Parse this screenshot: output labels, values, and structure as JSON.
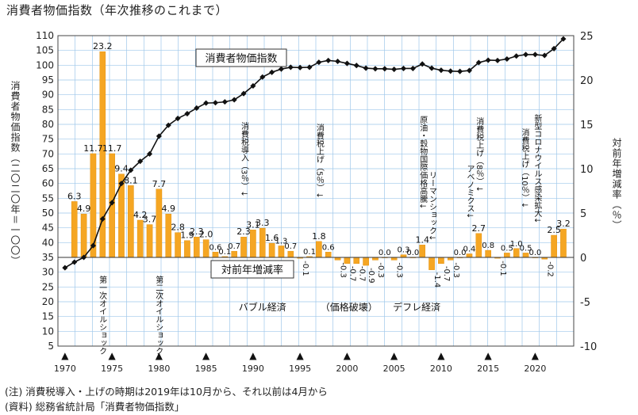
{
  "title": "消費者物価指数（年次推移のこれまで）",
  "notes": {
    "note1": "(注) 消費税導入・上げの時期は2019年は10月から、それ以前は4月から",
    "note2": "(資料) 総務省統計局「消費者物価指数」"
  },
  "chart_data": {
    "type": "bar+line",
    "x_ticks": [
      1970,
      1975,
      1980,
      1985,
      1990,
      1995,
      2000,
      2005,
      2010,
      2015,
      2020
    ],
    "left_axis": {
      "label": "消費者物価指数（二〇二〇年＝一〇〇）",
      "ticks": [
        5,
        10,
        15,
        20,
        25,
        30,
        35,
        40,
        45,
        50,
        55,
        60,
        65,
        70,
        75,
        80,
        85,
        90,
        95,
        100,
        105,
        110
      ],
      "ylim": [
        5,
        110
      ]
    },
    "right_axis": {
      "label": "対前年増減率（％）",
      "ticks": [
        -10,
        -5,
        0,
        5,
        10,
        15,
        20,
        25
      ],
      "ylim": [
        -10,
        25
      ]
    },
    "years": [
      1970,
      1971,
      1972,
      1973,
      1974,
      1975,
      1976,
      1977,
      1978,
      1979,
      1980,
      1981,
      1982,
      1983,
      1984,
      1985,
      1986,
      1987,
      1988,
      1989,
      1990,
      1991,
      1992,
      1993,
      1994,
      1995,
      1996,
      1997,
      1998,
      1999,
      2000,
      2001,
      2002,
      2003,
      2004,
      2005,
      2006,
      2007,
      2008,
      2009,
      2010,
      2011,
      2012,
      2013,
      2014,
      2015,
      2016,
      2017,
      2018,
      2019,
      2020,
      2021,
      2022,
      2023
    ],
    "series": [
      {
        "name": "消費者物価指数",
        "axis": "left",
        "values": [
          31.5,
          33.4,
          35.0,
          39.0,
          48.0,
          53.5,
          60.0,
          64.5,
          67.5,
          70.0,
          76.0,
          79.7,
          82.0,
          83.6,
          85.5,
          87.2,
          87.3,
          87.6,
          88.3,
          90.4,
          93.0,
          96.0,
          97.6,
          98.7,
          99.3,
          99.2,
          99.3,
          101.0,
          101.6,
          101.3,
          100.6,
          99.9,
          99.0,
          98.8,
          98.8,
          98.6,
          98.9,
          98.9,
          100.4,
          99.0,
          98.3,
          98.0,
          97.9,
          98.2,
          100.9,
          101.7,
          101.6,
          102.1,
          103.1,
          103.6,
          103.6,
          103.3,
          105.6,
          108.9
        ]
      },
      {
        "name": "対前年増減率",
        "axis": "right",
        "values": [
          null,
          6.3,
          4.9,
          11.7,
          23.2,
          11.7,
          9.4,
          8.1,
          4.2,
          3.7,
          7.7,
          4.9,
          2.8,
          1.9,
          2.3,
          2.0,
          0.6,
          0.1,
          0.7,
          2.3,
          3.1,
          3.3,
          1.6,
          1.3,
          0.7,
          -0.1,
          0.1,
          1.8,
          0.6,
          -0.3,
          -0.7,
          -0.7,
          -0.9,
          -0.3,
          0.0,
          -0.3,
          0.3,
          0.0,
          1.4,
          -1.4,
          -0.7,
          -0.3,
          0.0,
          0.4,
          2.7,
          0.8,
          -0.1,
          0.5,
          1.0,
          0.5,
          0.0,
          -0.2,
          2.5,
          3.2
        ],
        "labels": [
          "",
          "6.3",
          "4.9",
          "11.7",
          "23.2",
          "11.7",
          "9.4",
          "8.1",
          "4.2",
          "3.7",
          "7.7",
          "4.9",
          "2.8",
          "1.9",
          "2.3",
          "2.0",
          "0.6",
          "0.1",
          "0.7",
          "2.3",
          "3.1",
          "3.3",
          "1.6",
          "1.3",
          "0.7",
          "-0.1",
          "0.1",
          "1.8",
          "0.6",
          "-0.3",
          "-0.7",
          "-0.7",
          "-0.9",
          "-0.3",
          "0.0",
          "-0.3",
          "0.3",
          "0.0",
          "1.4",
          "-1.4",
          "-0.7",
          "-0.3",
          "0.0",
          "0.4",
          "2.7",
          "0.8",
          "-0.1",
          "0.5",
          "1.0",
          "0.5",
          "0.0",
          "-0.2",
          "2.5",
          "3.2"
        ]
      }
    ],
    "annotations": [
      {
        "text": "第一次オイルショック",
        "year": 1973.9
      },
      {
        "text": "第二次オイルショック",
        "year": 1979.9
      },
      {
        "text": "消費税導入（3％）↓",
        "year": 1989
      },
      {
        "text": "消費税上げ（5％）↓",
        "year": 1997
      },
      {
        "text": "原油・穀物国際価格高騰↓",
        "year": 2008
      },
      {
        "text": "リーマンショック↓",
        "year": 2009
      },
      {
        "text": "アベノミクス↓",
        "year": 2013
      },
      {
        "text": "消費税上げ（8％）↓",
        "year": 2014
      },
      {
        "text": "消費税上げ（10％）↓",
        "year": 2019
      },
      {
        "text": "新型コロナウイルス感染拡大↓",
        "year": 2020
      }
    ],
    "series_labels": [
      {
        "text": "消費者物価指数"
      },
      {
        "text": "対前年増減率"
      }
    ],
    "period_labels": [
      {
        "text": "バブル経済",
        "year": 1991
      },
      {
        "text": "（価格破壊）",
        "year": 2000.2
      },
      {
        "text": "デフレ経済",
        "year": 2007.4
      }
    ],
    "markers": "▲",
    "colors": {
      "bar": "#f5a623",
      "bar_edge": "#e08a00",
      "line": "#111111",
      "grid": "#9ec7ea",
      "background": "#ffffff"
    }
  }
}
